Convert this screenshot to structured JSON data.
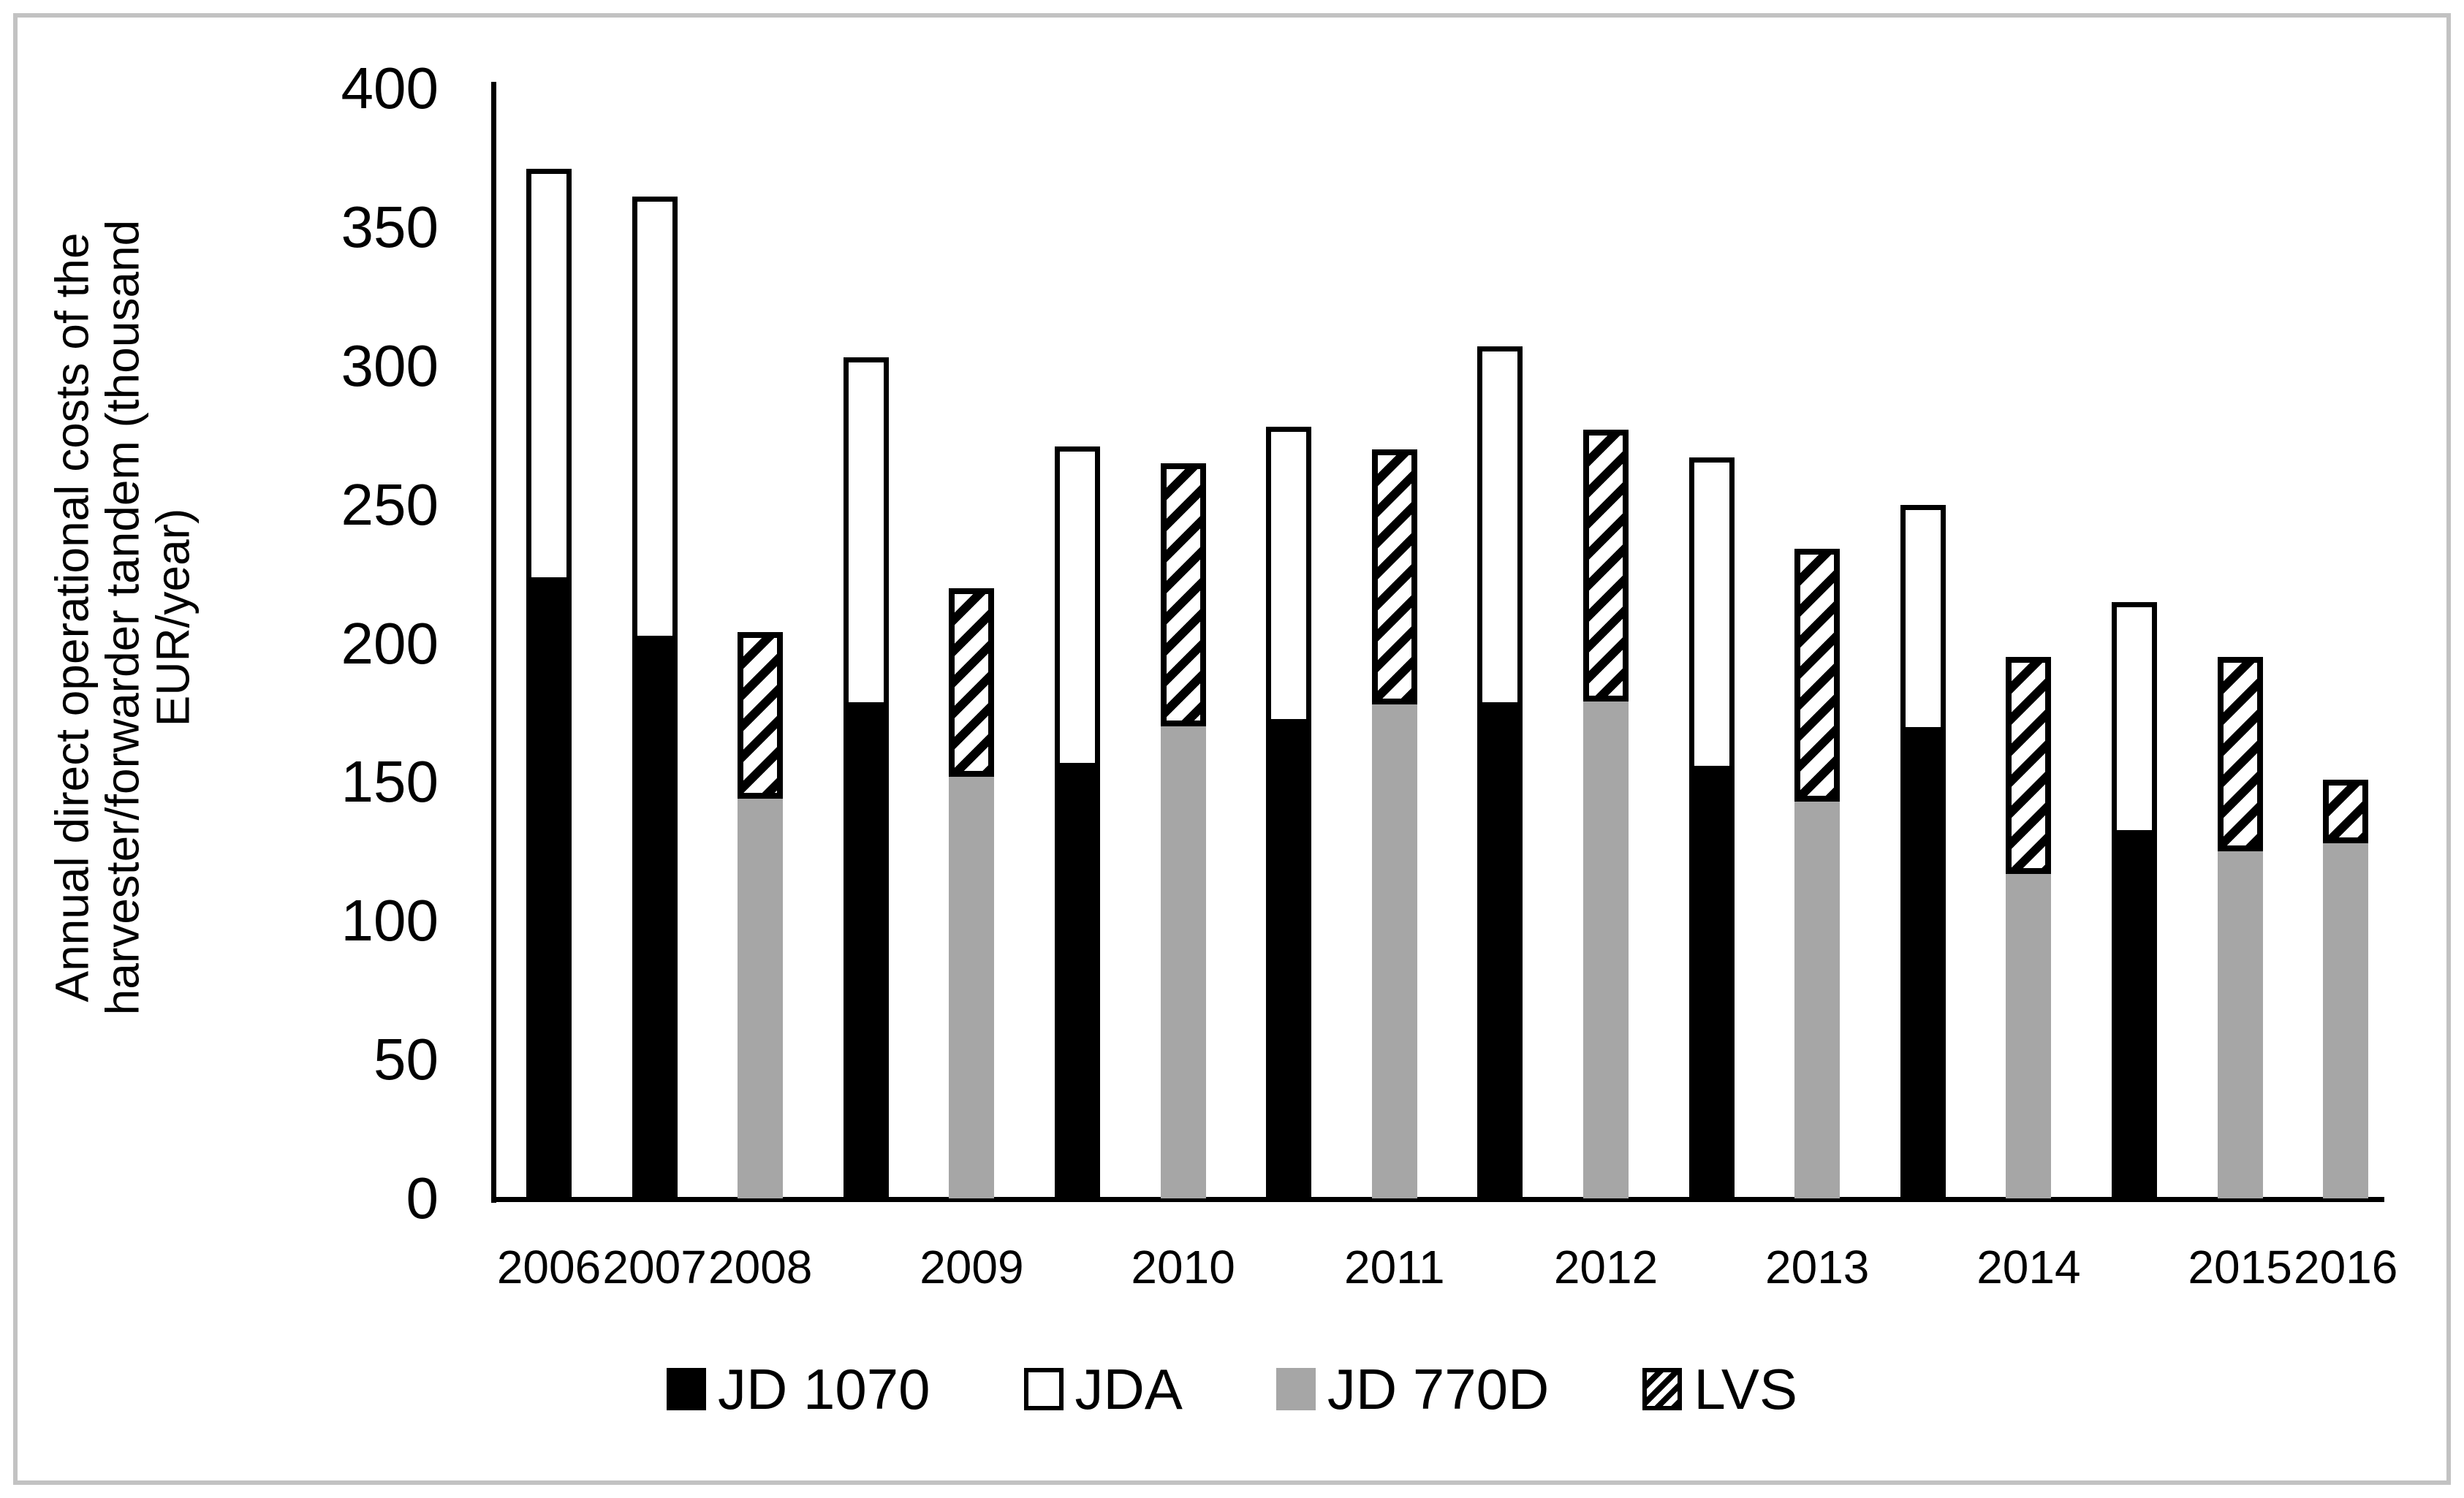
{
  "figure": {
    "background": "#ffffff",
    "frame_color": "#c2c2c2"
  },
  "chart_data": {
    "type": "bar",
    "stacked": true,
    "title": "",
    "ylabel_lines": [
      "Annual direct operational costs of the",
      "harvester/forwarder tandem (thousand",
      "EUR/year)"
    ],
    "ylim": [
      0,
      400
    ],
    "yticks": [
      0,
      50,
      100,
      150,
      200,
      250,
      300,
      350,
      400
    ],
    "grid": false,
    "legend_position": "bottom-center",
    "colors": {
      "jd_1070": "#000000",
      "jda": "#ffffff",
      "jd_770d": "#a6a6a6",
      "lvs_pattern": "black-white-diagonal-hatch",
      "axis": "#000000"
    },
    "legend": [
      {
        "name": "JD 1070",
        "style": "seg-black"
      },
      {
        "name": "JDA",
        "style": "seg-white"
      },
      {
        "name": "JD 770D",
        "style": "seg-gray"
      },
      {
        "name": "LVS",
        "style": "seg-hatch"
      }
    ],
    "x_axis_note": "18 stacked bars; labels shown under bars 1,2,3,5,7,9,11,13,15,17,18",
    "bars": [
      {
        "label": "2006",
        "segments": [
          {
            "series": "JD 1070",
            "value": 222
          },
          {
            "series": "JDA",
            "value": 149
          }
        ]
      },
      {
        "label": "2007",
        "segments": [
          {
            "series": "JD 1070",
            "value": 201
          },
          {
            "series": "JDA",
            "value": 160
          }
        ]
      },
      {
        "label": "2008",
        "segments": [
          {
            "series": "JD 770D",
            "value": 144
          },
          {
            "series": "LVS",
            "value": 60
          }
        ]
      },
      {
        "label": null,
        "segments": [
          {
            "series": "JD 1070",
            "value": 177
          },
          {
            "series": "JDA",
            "value": 126
          }
        ]
      },
      {
        "label": "2009",
        "segments": [
          {
            "series": "JD 770D",
            "value": 152
          },
          {
            "series": "LVS",
            "value": 68
          }
        ]
      },
      {
        "label": null,
        "segments": [
          {
            "series": "JD 1070",
            "value": 155
          },
          {
            "series": "JDA",
            "value": 116
          }
        ]
      },
      {
        "label": "2010",
        "segments": [
          {
            "series": "JD 770D",
            "value": 170
          },
          {
            "series": "LVS",
            "value": 95
          }
        ]
      },
      {
        "label": null,
        "segments": [
          {
            "series": "JD 1070",
            "value": 171
          },
          {
            "series": "JDA",
            "value": 107
          }
        ]
      },
      {
        "label": "2011",
        "segments": [
          {
            "series": "JD 770D",
            "value": 178
          },
          {
            "series": "LVS",
            "value": 92
          }
        ]
      },
      {
        "label": null,
        "segments": [
          {
            "series": "JD 1070",
            "value": 177
          },
          {
            "series": "JDA",
            "value": 130
          }
        ]
      },
      {
        "label": "2012",
        "segments": [
          {
            "series": "JD 770D",
            "value": 179
          },
          {
            "series": "LVS",
            "value": 98
          }
        ]
      },
      {
        "label": null,
        "segments": [
          {
            "series": "JD 1070",
            "value": 154
          },
          {
            "series": "JDA",
            "value": 113
          }
        ]
      },
      {
        "label": "2013",
        "segments": [
          {
            "series": "JD 770D",
            "value": 143
          },
          {
            "series": "LVS",
            "value": 91
          }
        ]
      },
      {
        "label": null,
        "segments": [
          {
            "series": "JD 1070",
            "value": 168
          },
          {
            "series": "JDA",
            "value": 82
          }
        ]
      },
      {
        "label": "2014",
        "segments": [
          {
            "series": "JD 770D",
            "value": 117
          },
          {
            "series": "LVS",
            "value": 78
          }
        ]
      },
      {
        "label": null,
        "segments": [
          {
            "series": "JD 1070",
            "value": 131
          },
          {
            "series": "JDA",
            "value": 84
          }
        ]
      },
      {
        "label": "2015",
        "segments": [
          {
            "series": "JD 770D",
            "value": 125
          },
          {
            "series": "LVS",
            "value": 70
          }
        ]
      },
      {
        "label": "2016",
        "segments": [
          {
            "series": "JD 770D",
            "value": 128
          },
          {
            "series": "LVS",
            "value": 23
          }
        ]
      }
    ]
  }
}
